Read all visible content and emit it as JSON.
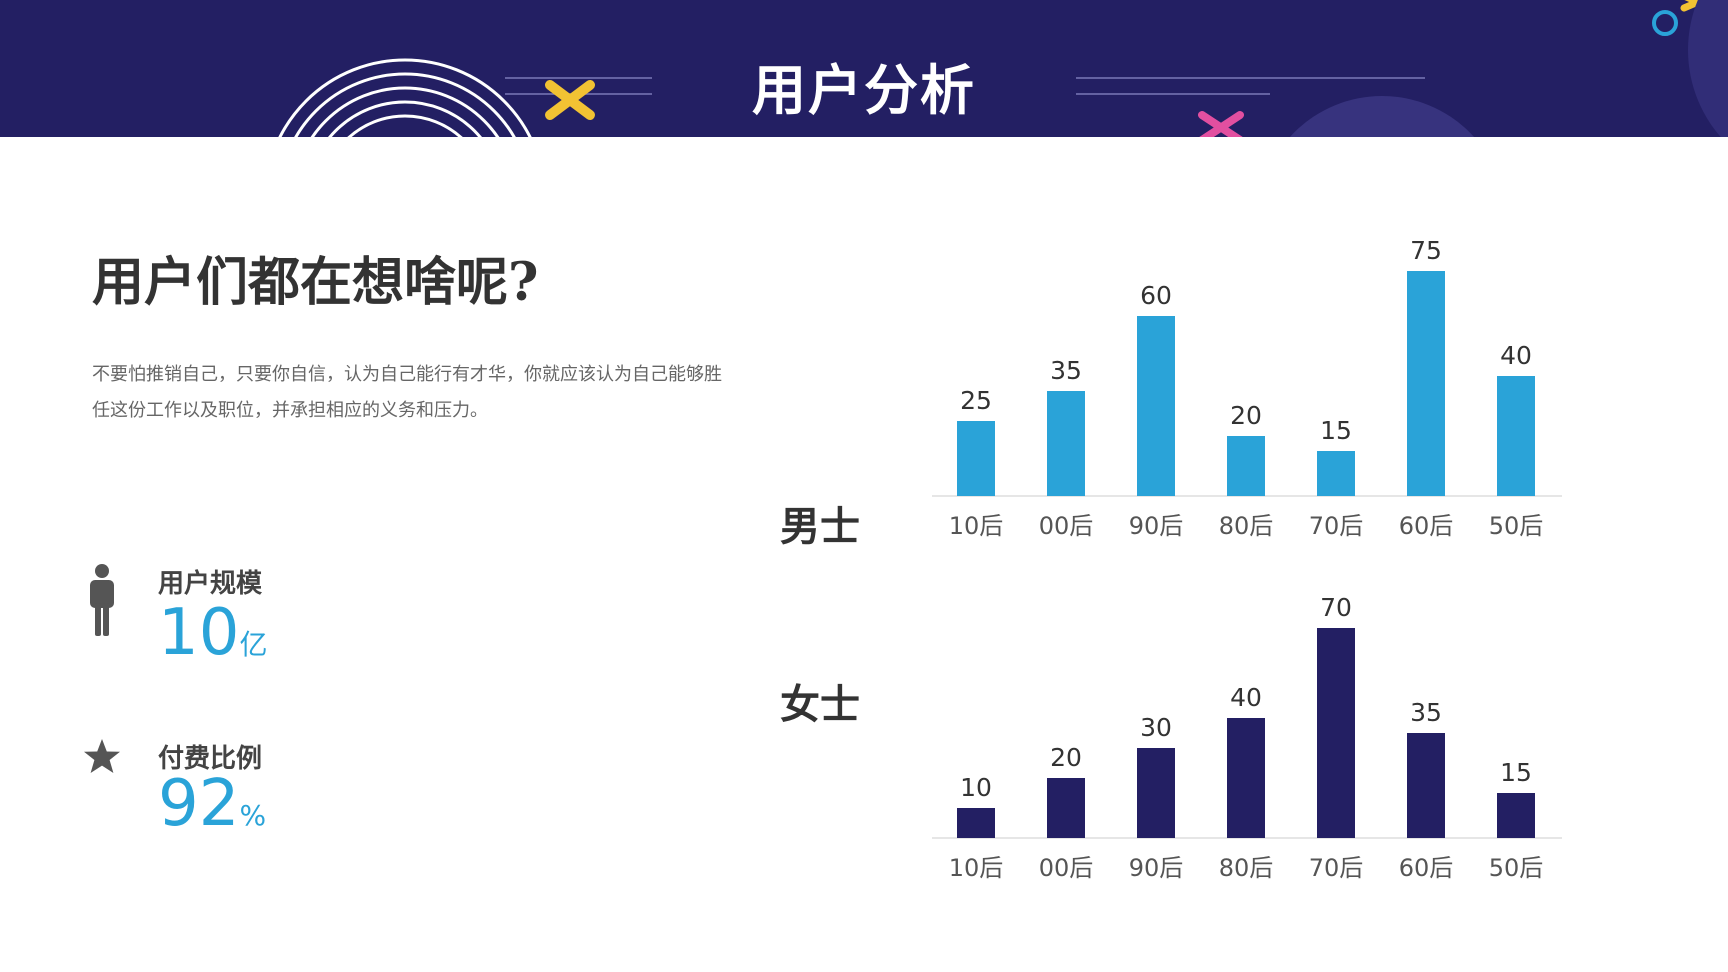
{
  "header": {
    "title": "用户分析"
  },
  "main": {
    "heading": "用户们都在想啥呢?",
    "description": "不要怕推销自己，只要你自信，认为自己能行有才华，你就应该认为自己能够胜任这份工作以及职位，并承担相应的义务和压力。"
  },
  "stats": [
    {
      "label": "用户规模",
      "value": "10",
      "unit": "亿",
      "icon": "person-icon"
    },
    {
      "label": "付费比例",
      "value": "92",
      "unit": "%",
      "icon": "star-icon"
    }
  ],
  "colors": {
    "header_bg": "#231f63",
    "male_bar": "#2aa3d8",
    "female_bar": "#231f63",
    "stat_value": "#2aa3d8"
  },
  "chart_data": [
    {
      "type": "bar",
      "title": "男士",
      "categories": [
        "10后",
        "00后",
        "90后",
        "80后",
        "70后",
        "60后",
        "50后"
      ],
      "values": [
        25,
        35,
        60,
        20,
        15,
        75,
        40
      ],
      "color": "#2aa3d8"
    },
    {
      "type": "bar",
      "title": "女士",
      "categories": [
        "10后",
        "00后",
        "90后",
        "80后",
        "70后",
        "60后",
        "50后"
      ],
      "values": [
        10,
        20,
        30,
        40,
        70,
        35,
        15
      ],
      "color": "#231f63"
    }
  ]
}
